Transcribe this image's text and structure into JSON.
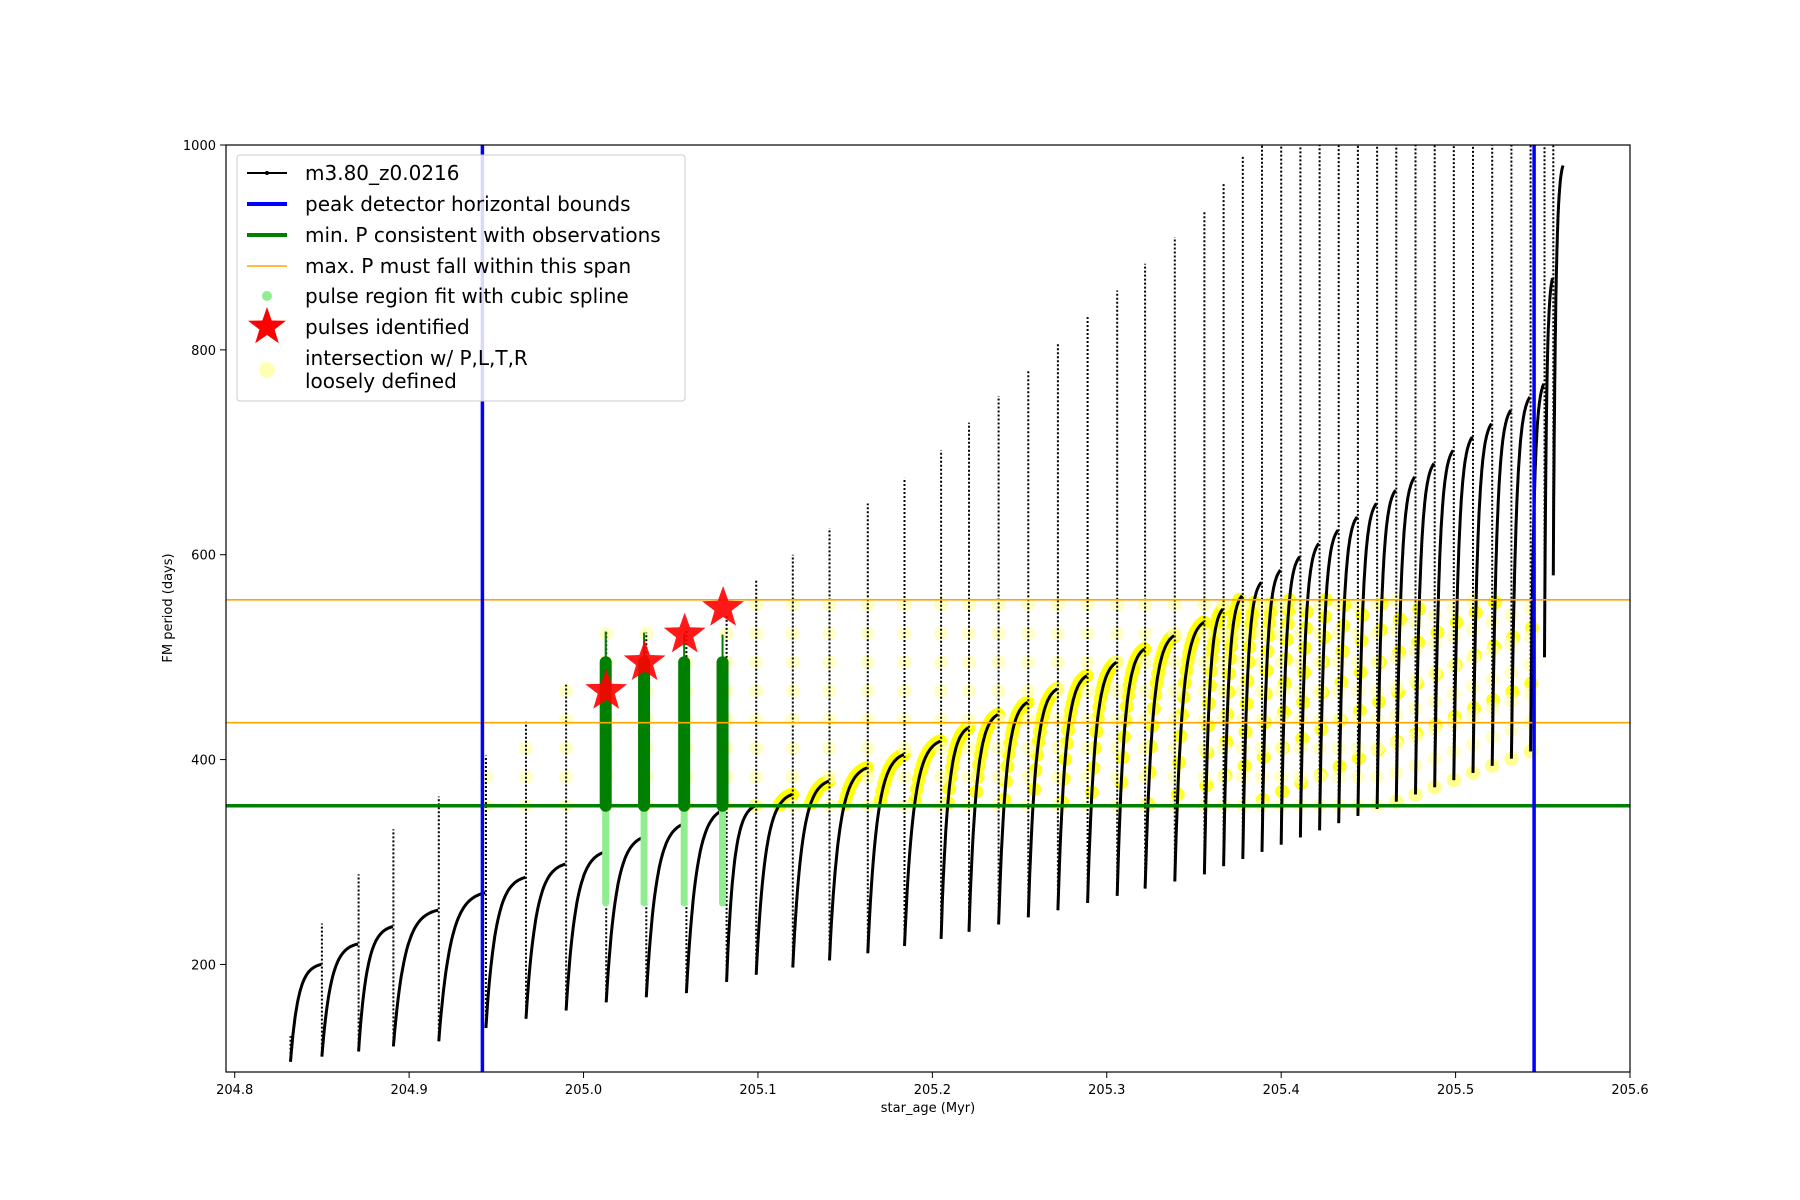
{
  "chart_data": {
    "type": "line",
    "title": "",
    "xlabel": "star_age (Myr)",
    "ylabel": "FM period (days)",
    "xlim": [
      204.795,
      205.6
    ],
    "ylim": [
      95,
      1000
    ],
    "x_ticks": [
      "204.8",
      "204.9",
      "205.0",
      "205.1",
      "205.2",
      "205.3",
      "205.4",
      "205.5",
      "205.6"
    ],
    "x_tick_values": [
      204.8,
      204.9,
      205.0,
      205.1,
      205.2,
      205.3,
      205.4,
      205.5,
      205.6
    ],
    "y_ticks": [
      "200",
      "400",
      "600",
      "800",
      "1000"
    ],
    "y_tick_values": [
      200,
      400,
      600,
      800,
      1000
    ],
    "grid": false,
    "legend_position": "top-left",
    "colors": {
      "model": "#000000",
      "bounds": "#0000ff",
      "min_p": "#008000",
      "max_p": "#ffa500",
      "spline": "#90ee90",
      "pulse": "#ff0000",
      "intersection": "#ffff00",
      "intersection_light": "#ffffb3",
      "spline_fit": "#008000"
    },
    "legend": [
      {
        "key": "model",
        "label": "m3.80_z0.0216"
      },
      {
        "key": "bounds",
        "label": "peak detector horizontal bounds"
      },
      {
        "key": "min_p",
        "label": "min. P consistent with observations"
      },
      {
        "key": "max_p",
        "label": "max. P must fall within this span"
      },
      {
        "key": "spline",
        "label": "pulse region fit with cubic spline"
      },
      {
        "key": "pulse",
        "label": "pulses identified"
      },
      {
        "key": "intersection",
        "label": "intersection w/ P,L,T,R\nloosely defined"
      }
    ],
    "peak_detector_bounds_x": [
      204.942,
      205.545
    ],
    "min_period": 355,
    "max_period_span": [
      436,
      556
    ],
    "pulse_cycles": [
      {
        "start": 204.832,
        "min": 105,
        "max": 200,
        "spike": 130
      },
      {
        "start": 204.85,
        "min": 110,
        "max": 220,
        "spike": 240
      },
      {
        "start": 204.871,
        "min": 115,
        "max": 237,
        "spike": 288
      },
      {
        "start": 204.891,
        "min": 120,
        "max": 253,
        "spike": 332
      },
      {
        "start": 204.917,
        "min": 125,
        "max": 270,
        "spike": 364
      },
      {
        "start": 204.944,
        "min": 138,
        "max": 285,
        "spike": 404
      },
      {
        "start": 204.967,
        "min": 147,
        "max": 298,
        "spike": 437
      },
      {
        "start": 204.99,
        "min": 155,
        "max": 310,
        "spike": 473
      },
      {
        "start": 205.013,
        "min": 163,
        "max": 325,
        "spike": 526
      },
      {
        "start": 205.036,
        "min": 168,
        "max": 338,
        "spike": 524
      },
      {
        "start": 205.059,
        "min": 172,
        "max": 352,
        "spike": 528
      },
      {
        "start": 205.082,
        "min": 183,
        "max": 355,
        "spike": 542
      },
      {
        "start": 205.099,
        "min": 190,
        "max": 366,
        "spike": 575
      },
      {
        "start": 205.12,
        "min": 197,
        "max": 379,
        "spike": 600
      },
      {
        "start": 205.141,
        "min": 204,
        "max": 392,
        "spike": 626
      },
      {
        "start": 205.163,
        "min": 211,
        "max": 405,
        "spike": 650
      },
      {
        "start": 205.184,
        "min": 218,
        "max": 418,
        "spike": 675
      },
      {
        "start": 205.205,
        "min": 225,
        "max": 431,
        "spike": 702
      },
      {
        "start": 205.221,
        "min": 232,
        "max": 444,
        "spike": 729
      },
      {
        "start": 205.238,
        "min": 239,
        "max": 456,
        "spike": 755
      },
      {
        "start": 205.255,
        "min": 246,
        "max": 469,
        "spike": 780
      },
      {
        "start": 205.272,
        "min": 253,
        "max": 482,
        "spike": 806
      },
      {
        "start": 205.289,
        "min": 260,
        "max": 495,
        "spike": 832
      },
      {
        "start": 205.306,
        "min": 267,
        "max": 508,
        "spike": 858
      },
      {
        "start": 205.322,
        "min": 274,
        "max": 521,
        "spike": 884
      },
      {
        "start": 205.339,
        "min": 281,
        "max": 534,
        "spike": 910
      },
      {
        "start": 205.356,
        "min": 288,
        "max": 547,
        "spike": 936
      },
      {
        "start": 205.367,
        "min": 296,
        "max": 560,
        "spike": 962
      },
      {
        "start": 205.378,
        "min": 303,
        "max": 573,
        "spike": 990
      },
      {
        "start": 205.389,
        "min": 310,
        "max": 585,
        "spike": 1000
      },
      {
        "start": 205.4,
        "min": 317,
        "max": 598,
        "spike": 1000
      },
      {
        "start": 205.411,
        "min": 324,
        "max": 611,
        "spike": 1000
      },
      {
        "start": 205.422,
        "min": 331,
        "max": 624,
        "spike": 1000
      },
      {
        "start": 205.433,
        "min": 338,
        "max": 637,
        "spike": 1000
      },
      {
        "start": 205.444,
        "min": 345,
        "max": 650,
        "spike": 1000
      },
      {
        "start": 205.455,
        "min": 352,
        "max": 663,
        "spike": 1000
      },
      {
        "start": 205.466,
        "min": 359,
        "max": 676,
        "spike": 1000
      },
      {
        "start": 205.477,
        "min": 366,
        "max": 689,
        "spike": 1000
      },
      {
        "start": 205.488,
        "min": 373,
        "max": 702,
        "spike": 1000
      },
      {
        "start": 205.499,
        "min": 380,
        "max": 715,
        "spike": 1000
      },
      {
        "start": 205.51,
        "min": 387,
        "max": 728,
        "spike": 1000
      },
      {
        "start": 205.521,
        "min": 394,
        "max": 741,
        "spike": 1000
      },
      {
        "start": 205.532,
        "min": 401,
        "max": 754,
        "spike": 1000
      },
      {
        "start": 205.543,
        "min": 408,
        "max": 767,
        "spike": 1000
      },
      {
        "start": 205.551,
        "min": 500,
        "max": 870,
        "spike": 1000
      },
      {
        "start": 205.556,
        "min": 580,
        "max": 980,
        "spike": 1000
      }
    ],
    "pulses_identified": [
      {
        "x": 205.013,
        "y": 467
      },
      {
        "x": 205.035,
        "y": 495
      },
      {
        "x": 205.058,
        "y": 522
      },
      {
        "x": 205.08,
        "y": 548
      }
    ]
  }
}
